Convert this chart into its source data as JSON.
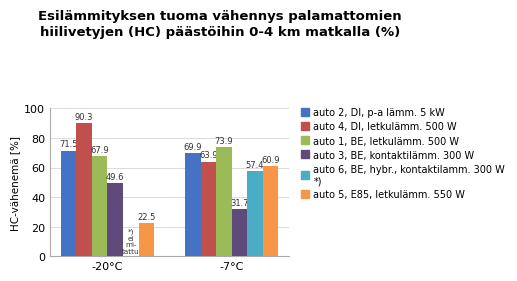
{
  "title_line1": "Esilämmityksen tuoma vähennys palamattomien",
  "title_line2": "hiilivetyjen (HC) päästöihin 0-4 km matkalla (%)",
  "ylabel": "HC-vähenemä [%]",
  "categories": [
    "-20°C",
    "-7°C"
  ],
  "series": [
    {
      "label": "auto 2, DI, p-a lämm. 5 kW",
      "color": "#4472C4",
      "values": [
        71.5,
        69.9
      ]
    },
    {
      "label": "auto 4, DI, letkulämm. 500 W",
      "color": "#C0504D",
      "values": [
        90.3,
        63.9
      ]
    },
    {
      "label": "auto 1, BE, letkulämm. 500 W",
      "color": "#9BBB59",
      "values": [
        67.9,
        73.9
      ]
    },
    {
      "label": "auto 3, BE, kontaktilämm. 300 W",
      "color": "#604A7B",
      "values": [
        49.6,
        31.7
      ]
    },
    {
      "label": "auto 6, BE, hybr., kontaktilamm. 300 W\n*)",
      "color": "#4BACC6",
      "values": [
        null,
        57.4
      ]
    },
    {
      "label": "auto 5, E85, letkulämm. 550 W",
      "color": "#F79646",
      "values": [
        22.5,
        60.9
      ]
    }
  ],
  "ylim": [
    0,
    100
  ],
  "yticks": [
    0,
    20,
    40,
    60,
    80,
    100
  ],
  "annotation_text": "*)\nei\nmi-\ntattu",
  "background_color": "#FFFFFF",
  "title_fontsize": 9.5,
  "label_fontsize": 7.5,
  "tick_fontsize": 8,
  "legend_fontsize": 7,
  "bar_value_fontsize": 6.0
}
